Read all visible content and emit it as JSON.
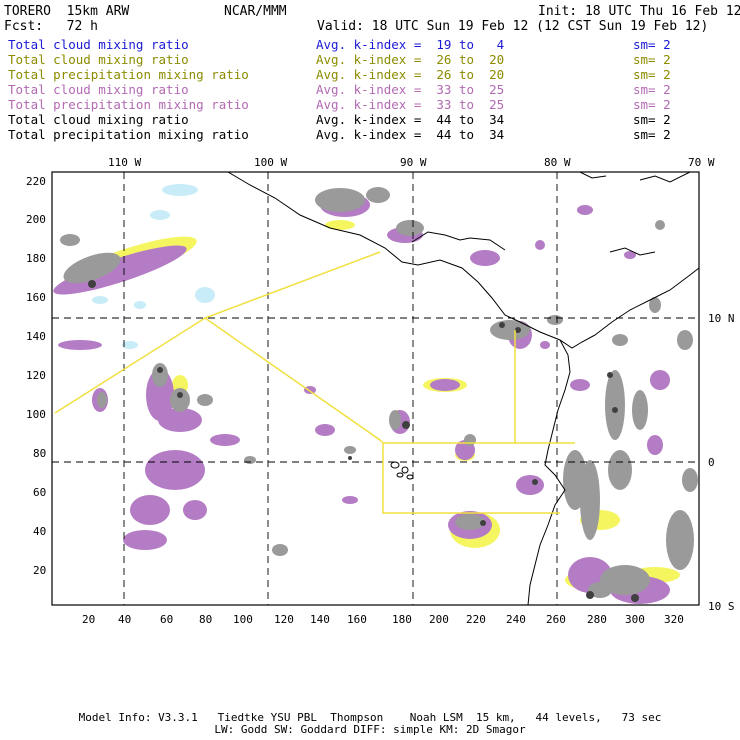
{
  "header": {
    "model": "TORERO  15km ARW",
    "org": "NCAR/MMM",
    "init": "Init: 18 UTC Thu 16 Feb 12",
    "fcst": "Fcst:   72 h",
    "valid": "Valid: 18 UTC Sun 19 Feb 12 (12 CST Sun 19 Feb 12)"
  },
  "legend": [
    {
      "label": "Total cloud mixing ratio",
      "index": "Avg. k-index =  19 to   4",
      "sm": "sm= 2",
      "color": "#1a1ad6"
    },
    {
      "label": "Total cloud mixing ratio",
      "index": "Avg. k-index =  26 to  20",
      "sm": "sm= 2",
      "color": "#8c8c00"
    },
    {
      "label": "Total precipitation mixing ratio",
      "index": "Avg. k-index =  26 to  20",
      "sm": "sm= 2",
      "color": "#8c8c00"
    },
    {
      "label": "Total cloud mixing ratio",
      "index": "Avg. k-index =  33 to  25",
      "sm": "sm= 2",
      "color": "#b36ab3"
    },
    {
      "label": "Total precipitation mixing ratio",
      "index": "Avg. k-index =  33 to  25",
      "sm": "sm= 2",
      "color": "#b36ab3"
    },
    {
      "label": "Total cloud mixing ratio",
      "index": "Avg. k-index =  44 to  34",
      "sm": "sm= 2",
      "color": "#000000"
    },
    {
      "label": "Total precipitation mixing ratio",
      "index": "Avg. k-index =  44 to  34",
      "sm": "sm= 2",
      "color": "#000000"
    }
  ],
  "axes": {
    "top_lon": [
      "110 W",
      "100 W",
      "90 W",
      "80 W",
      "70 W"
    ],
    "right_lat": [
      "10 N",
      "0",
      "10 S"
    ],
    "left_y": [
      "220",
      "200",
      "180",
      "160",
      "140",
      "120",
      "100",
      "80",
      "60",
      "40",
      "20"
    ],
    "bottom_x": [
      "20",
      "40",
      "60",
      "80",
      "100",
      "120",
      "140",
      "160",
      "180",
      "200",
      "220",
      "240",
      "260",
      "280",
      "300",
      "320"
    ]
  },
  "footer": {
    "line1": "Model Info: V3.3.1   Tiedtke YSU PBL  Thompson    Noah LSM  15 km,   44 levels,   73 sec",
    "line2": "LW: Godd SW: Goddard DIFF: simple KM: 2D Smagor"
  },
  "colors": {
    "cloud_light": "#c8ecf8",
    "yellow": "#f5f560",
    "purple": "#b47cc4",
    "gray": "#9a9a9a",
    "dark": "#404040",
    "boundary": "#f0e040"
  }
}
